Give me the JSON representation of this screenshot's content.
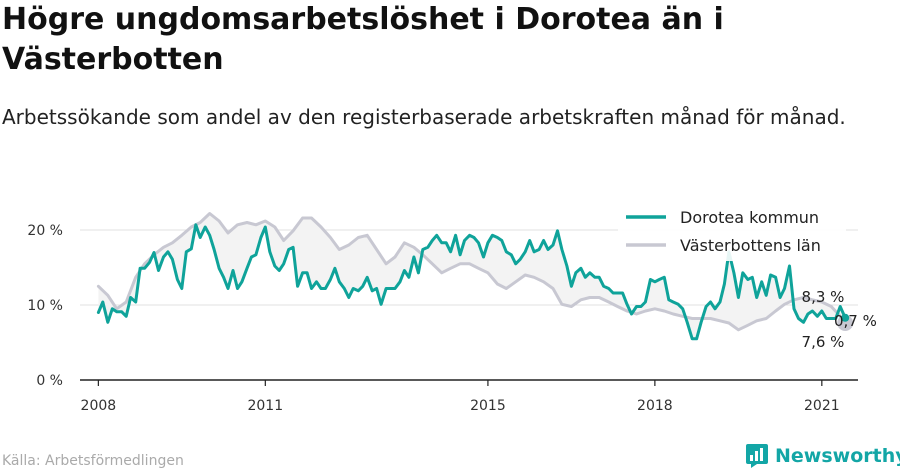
{
  "header": {
    "title": "Högre ungdomsarbetslöshet i Dorotea än i Västerbotten",
    "subtitle": "Arbetssökande som andel av den registerbaserade arbetskraften månad för månad."
  },
  "footer": {
    "source": "Källa: Arbetsförmedlingen",
    "brand": "Newsworthy",
    "brand_icon": "newsworthy-logo-icon"
  },
  "colors": {
    "dorotea": "#0fa39a",
    "vasterbotten": "#c8c8d2",
    "band": "#f3f3f3",
    "grid": "#e2e2e2"
  },
  "chart_data": {
    "type": "line",
    "x_unit": "year (decimal)",
    "xlim": [
      2007.67,
      2021.65
    ],
    "ylim": [
      0,
      20
    ],
    "x_ticks": [
      2008,
      2011,
      2015,
      2018,
      2021
    ],
    "x_tick_labels": [
      "2008",
      "2011",
      "2015",
      "2018",
      "2021"
    ],
    "y_ticks": [
      0,
      10,
      20
    ],
    "y_tick_labels": [
      "0 %",
      "10 %",
      "20 %"
    ],
    "grid": "horizontal",
    "legend_position": "top-right",
    "series": [
      {
        "name": "Dorotea kommun",
        "color": "#0fa39a",
        "points": [
          [
            2008.0,
            9.0
          ],
          [
            2008.08,
            10.4
          ],
          [
            2008.17,
            7.7
          ],
          [
            2008.25,
            9.5
          ],
          [
            2008.33,
            9.1
          ],
          [
            2008.42,
            9.1
          ],
          [
            2008.5,
            8.5
          ],
          [
            2008.58,
            11.0
          ],
          [
            2008.67,
            10.4
          ],
          [
            2008.75,
            14.9
          ],
          [
            2008.83,
            14.9
          ],
          [
            2008.92,
            15.7
          ],
          [
            2009.0,
            17.0
          ],
          [
            2009.08,
            14.6
          ],
          [
            2009.17,
            16.4
          ],
          [
            2009.25,
            17.1
          ],
          [
            2009.33,
            16.1
          ],
          [
            2009.42,
            13.4
          ],
          [
            2009.5,
            12.2
          ],
          [
            2009.58,
            17.1
          ],
          [
            2009.67,
            17.5
          ],
          [
            2009.75,
            20.7
          ],
          [
            2009.83,
            19.0
          ],
          [
            2009.92,
            20.4
          ],
          [
            2010.0,
            19.3
          ],
          [
            2010.08,
            17.4
          ],
          [
            2010.17,
            14.9
          ],
          [
            2010.25,
            13.7
          ],
          [
            2010.33,
            12.2
          ],
          [
            2010.42,
            14.6
          ],
          [
            2010.5,
            12.2
          ],
          [
            2010.58,
            13.1
          ],
          [
            2010.67,
            14.9
          ],
          [
            2010.75,
            16.4
          ],
          [
            2010.83,
            16.7
          ],
          [
            2010.92,
            19.0
          ],
          [
            2011.0,
            20.4
          ],
          [
            2011.08,
            17.1
          ],
          [
            2011.17,
            15.2
          ],
          [
            2011.25,
            14.6
          ],
          [
            2011.33,
            15.5
          ],
          [
            2011.42,
            17.4
          ],
          [
            2011.5,
            17.7
          ],
          [
            2011.58,
            12.5
          ],
          [
            2011.67,
            14.3
          ],
          [
            2011.75,
            14.3
          ],
          [
            2011.83,
            12.2
          ],
          [
            2011.92,
            13.1
          ],
          [
            2012.0,
            12.2
          ],
          [
            2012.08,
            12.2
          ],
          [
            2012.17,
            13.4
          ],
          [
            2012.25,
            14.9
          ],
          [
            2012.33,
            13.1
          ],
          [
            2012.42,
            12.2
          ],
          [
            2012.5,
            11.0
          ],
          [
            2012.58,
            12.2
          ],
          [
            2012.67,
            11.9
          ],
          [
            2012.75,
            12.5
          ],
          [
            2012.83,
            13.7
          ],
          [
            2012.92,
            11.9
          ],
          [
            2013.0,
            12.2
          ],
          [
            2013.08,
            10.1
          ],
          [
            2013.17,
            12.2
          ],
          [
            2013.25,
            12.2
          ],
          [
            2013.33,
            12.2
          ],
          [
            2013.42,
            13.1
          ],
          [
            2013.5,
            14.6
          ],
          [
            2013.58,
            13.7
          ],
          [
            2013.67,
            16.4
          ],
          [
            2013.75,
            14.3
          ],
          [
            2013.83,
            17.4
          ],
          [
            2013.92,
            17.7
          ],
          [
            2014.0,
            18.6
          ],
          [
            2014.08,
            19.3
          ],
          [
            2014.17,
            18.3
          ],
          [
            2014.25,
            18.3
          ],
          [
            2014.33,
            17.1
          ],
          [
            2014.42,
            19.3
          ],
          [
            2014.5,
            16.7
          ],
          [
            2014.58,
            18.6
          ],
          [
            2014.67,
            19.3
          ],
          [
            2014.75,
            19.0
          ],
          [
            2014.83,
            18.3
          ],
          [
            2014.92,
            16.4
          ],
          [
            2015.0,
            18.3
          ],
          [
            2015.08,
            19.3
          ],
          [
            2015.17,
            19.0
          ],
          [
            2015.25,
            18.6
          ],
          [
            2015.33,
            17.1
          ],
          [
            2015.42,
            16.7
          ],
          [
            2015.5,
            15.5
          ],
          [
            2015.58,
            16.1
          ],
          [
            2015.67,
            17.1
          ],
          [
            2015.75,
            18.6
          ],
          [
            2015.83,
            17.1
          ],
          [
            2015.92,
            17.4
          ],
          [
            2016.0,
            18.6
          ],
          [
            2016.08,
            17.4
          ],
          [
            2016.17,
            18.0
          ],
          [
            2016.25,
            19.9
          ],
          [
            2016.33,
            17.4
          ],
          [
            2016.42,
            15.2
          ],
          [
            2016.5,
            12.5
          ],
          [
            2016.58,
            14.3
          ],
          [
            2016.67,
            14.9
          ],
          [
            2016.75,
            13.7
          ],
          [
            2016.83,
            14.3
          ],
          [
            2016.92,
            13.7
          ],
          [
            2017.0,
            13.7
          ],
          [
            2017.08,
            12.5
          ],
          [
            2017.17,
            12.2
          ],
          [
            2017.25,
            11.6
          ],
          [
            2017.33,
            11.6
          ],
          [
            2017.42,
            11.6
          ],
          [
            2017.5,
            10.1
          ],
          [
            2017.58,
            8.8
          ],
          [
            2017.67,
            9.8
          ],
          [
            2017.75,
            9.8
          ],
          [
            2017.83,
            10.4
          ],
          [
            2017.92,
            13.4
          ],
          [
            2018.0,
            13.1
          ],
          [
            2018.08,
            13.4
          ],
          [
            2018.17,
            13.7
          ],
          [
            2018.25,
            10.7
          ],
          [
            2018.33,
            10.4
          ],
          [
            2018.42,
            10.1
          ],
          [
            2018.5,
            9.5
          ],
          [
            2018.58,
            7.7
          ],
          [
            2018.67,
            5.5
          ],
          [
            2018.75,
            5.5
          ],
          [
            2018.83,
            7.7
          ],
          [
            2018.92,
            9.8
          ],
          [
            2019.0,
            10.4
          ],
          [
            2019.08,
            9.5
          ],
          [
            2019.17,
            10.4
          ],
          [
            2019.25,
            12.8
          ],
          [
            2019.33,
            17.1
          ],
          [
            2019.42,
            14.3
          ],
          [
            2019.5,
            11.0
          ],
          [
            2019.58,
            14.3
          ],
          [
            2019.67,
            13.4
          ],
          [
            2019.75,
            13.7
          ],
          [
            2019.83,
            11.0
          ],
          [
            2019.92,
            13.1
          ],
          [
            2020.0,
            11.3
          ],
          [
            2020.08,
            14.0
          ],
          [
            2020.17,
            13.7
          ],
          [
            2020.25,
            11.0
          ],
          [
            2020.33,
            12.2
          ],
          [
            2020.42,
            15.2
          ],
          [
            2020.5,
            9.5
          ],
          [
            2020.58,
            8.2
          ],
          [
            2020.67,
            7.7
          ],
          [
            2020.75,
            8.8
          ],
          [
            2020.83,
            9.2
          ],
          [
            2020.92,
            8.5
          ],
          [
            2021.0,
            9.2
          ],
          [
            2021.08,
            8.2
          ],
          [
            2021.17,
            8.2
          ],
          [
            2021.25,
            8.2
          ],
          [
            2021.33,
            9.8
          ],
          [
            2021.42,
            8.3
          ]
        ]
      },
      {
        "name": "Västerbottens län",
        "color": "#c8c8d2",
        "points": [
          [
            2008.0,
            12.5
          ],
          [
            2008.17,
            11.3
          ],
          [
            2008.33,
            9.5
          ],
          [
            2008.5,
            10.4
          ],
          [
            2008.67,
            13.7
          ],
          [
            2008.83,
            15.5
          ],
          [
            2009.0,
            16.7
          ],
          [
            2009.17,
            17.7
          ],
          [
            2009.33,
            18.3
          ],
          [
            2009.5,
            19.3
          ],
          [
            2009.67,
            20.4
          ],
          [
            2009.83,
            21.0
          ],
          [
            2010.0,
            22.2
          ],
          [
            2010.17,
            21.2
          ],
          [
            2010.33,
            19.6
          ],
          [
            2010.5,
            20.7
          ],
          [
            2010.67,
            21.0
          ],
          [
            2010.83,
            20.7
          ],
          [
            2011.0,
            21.2
          ],
          [
            2011.17,
            20.4
          ],
          [
            2011.33,
            18.6
          ],
          [
            2011.5,
            19.9
          ],
          [
            2011.67,
            21.6
          ],
          [
            2011.83,
            21.6
          ],
          [
            2012.0,
            20.4
          ],
          [
            2012.17,
            19.0
          ],
          [
            2012.33,
            17.4
          ],
          [
            2012.5,
            18.0
          ],
          [
            2012.67,
            19.0
          ],
          [
            2012.83,
            19.3
          ],
          [
            2013.0,
            17.4
          ],
          [
            2013.17,
            15.5
          ],
          [
            2013.33,
            16.4
          ],
          [
            2013.5,
            18.3
          ],
          [
            2013.67,
            17.7
          ],
          [
            2013.83,
            16.7
          ],
          [
            2014.0,
            15.5
          ],
          [
            2014.17,
            14.3
          ],
          [
            2014.33,
            14.9
          ],
          [
            2014.5,
            15.5
          ],
          [
            2014.67,
            15.5
          ],
          [
            2014.83,
            14.9
          ],
          [
            2015.0,
            14.3
          ],
          [
            2015.17,
            12.8
          ],
          [
            2015.33,
            12.2
          ],
          [
            2015.5,
            13.1
          ],
          [
            2015.67,
            14.0
          ],
          [
            2015.83,
            13.7
          ],
          [
            2016.0,
            13.1
          ],
          [
            2016.17,
            12.2
          ],
          [
            2016.33,
            10.1
          ],
          [
            2016.5,
            9.8
          ],
          [
            2016.67,
            10.7
          ],
          [
            2016.83,
            11.0
          ],
          [
            2017.0,
            11.0
          ],
          [
            2017.17,
            10.4
          ],
          [
            2017.33,
            9.8
          ],
          [
            2017.5,
            9.2
          ],
          [
            2017.67,
            8.8
          ],
          [
            2017.83,
            9.2
          ],
          [
            2018.0,
            9.5
          ],
          [
            2018.17,
            9.2
          ],
          [
            2018.33,
            8.8
          ],
          [
            2018.5,
            8.5
          ],
          [
            2018.67,
            8.2
          ],
          [
            2018.83,
            8.2
          ],
          [
            2019.0,
            8.2
          ],
          [
            2019.17,
            7.9
          ],
          [
            2019.33,
            7.6
          ],
          [
            2019.5,
            6.7
          ],
          [
            2019.67,
            7.3
          ],
          [
            2019.83,
            7.9
          ],
          [
            2020.0,
            8.2
          ],
          [
            2020.17,
            9.2
          ],
          [
            2020.33,
            10.1
          ],
          [
            2020.5,
            10.7
          ],
          [
            2020.67,
            11.0
          ],
          [
            2020.83,
            10.7
          ],
          [
            2021.0,
            10.4
          ],
          [
            2021.17,
            9.8
          ],
          [
            2021.33,
            8.5
          ],
          [
            2021.42,
            7.6
          ]
        ]
      }
    ],
    "end_labels": [
      {
        "series": "Dorotea kommun",
        "text": "8,3 %"
      },
      {
        "series": "Västerbottens län",
        "text": "7,6 %"
      }
    ],
    "difference_label": "0,7 %"
  }
}
